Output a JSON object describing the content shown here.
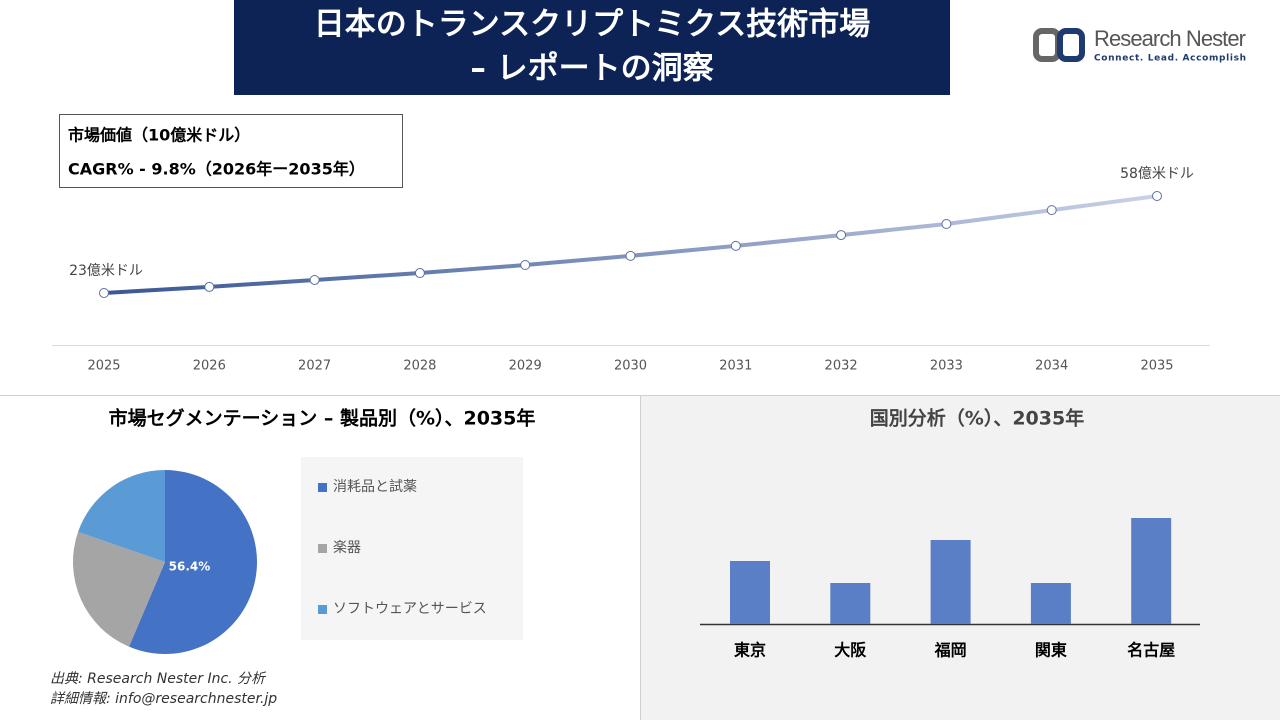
{
  "header": {
    "title_line1": "日本のトランスクリプトミクス技術市場",
    "title_line2": "– レポートの洞察",
    "logo_name": "Research Nester",
    "logo_tagline": "Connect. Lead. Accomplish"
  },
  "info_box": {
    "line1": "市場価値（10億米ドル）",
    "line2": "CAGR% - 9.8%（2026年ー2035年）"
  },
  "chart_data": [
    {
      "type": "line",
      "categories": [
        "2025",
        "2026",
        "2027",
        "2028",
        "2029",
        "2030",
        "2031",
        "2032",
        "2033",
        "2034",
        "2035"
      ],
      "values": [
        23,
        25.2,
        27.7,
        30.2,
        33.1,
        36.4,
        40.0,
        43.9,
        47.9,
        52.9,
        58
      ],
      "value_labels": [
        "23億米ドル",
        null,
        null,
        null,
        null,
        null,
        null,
        null,
        null,
        null,
        "58億米ドル"
      ],
      "gradient": [
        "#3a5795",
        "#c9d1e6"
      ]
    },
    {
      "type": "pie",
      "title": "市場セグメンテーション – 製品別（%）、2035年",
      "categories": [
        "消耗品と試薬",
        "楽器",
        "ソフトウェアとサービス"
      ],
      "values": [
        56.4,
        23.9,
        19.7
      ],
      "value_labels": [
        "56.4%",
        null,
        null
      ],
      "colors": [
        "#4472c4",
        "#a5a5a5",
        "#5b9bd5"
      ]
    },
    {
      "type": "bar",
      "title": "国別分析（%）、2035年",
      "categories": [
        "東京",
        "大阪",
        "福岡",
        "関東",
        "名古屋"
      ],
      "values": [
        63,
        41,
        84,
        41,
        106
      ],
      "color": "#5b7fc7"
    }
  ],
  "footer": {
    "source": "出典: Research Nester Inc. 分析",
    "contact": "詳細情報: info@researchnester.jp"
  }
}
